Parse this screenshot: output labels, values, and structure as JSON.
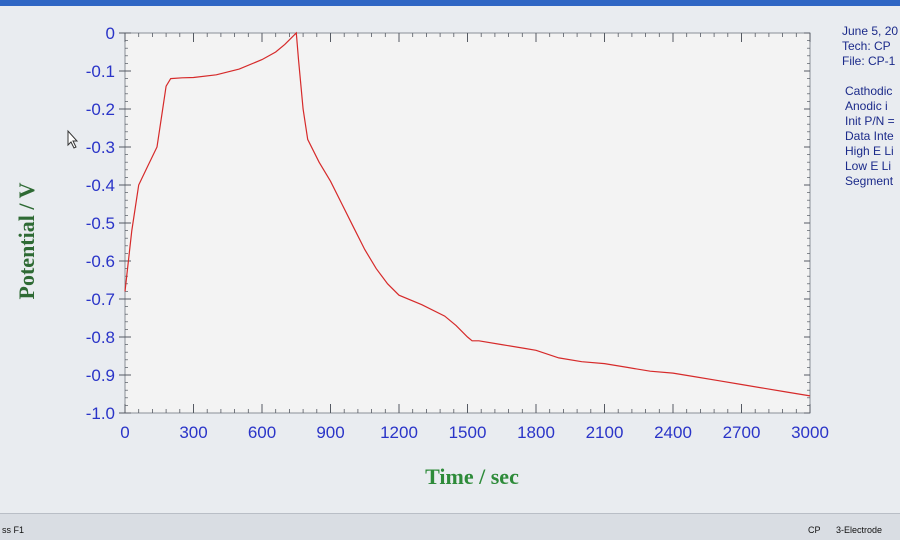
{
  "window": {
    "accent_color": "#2f66c4"
  },
  "chart_data": {
    "type": "line",
    "xlabel": "Time / sec",
    "ylabel": "Potential / V",
    "xlim": [
      0,
      3000
    ],
    "ylim": [
      -1.0,
      0
    ],
    "x_ticks": [
      0,
      300,
      600,
      900,
      1200,
      1500,
      1800,
      2100,
      2400,
      2700,
      3000
    ],
    "y_ticks": [
      0,
      -0.1,
      -0.2,
      -0.3,
      -0.4,
      -0.5,
      -0.6,
      -0.7,
      -0.8,
      -0.9,
      -1.0
    ],
    "y_tick_labels": [
      "0",
      "-0.1",
      "-0.2",
      "-0.3",
      "-0.4",
      "-0.5",
      "-0.6",
      "-0.7",
      "-0.8",
      "-0.9",
      "-1.0"
    ],
    "grid": false,
    "line_color": "#d62a2a",
    "series": [
      {
        "x": [
          0,
          30,
          60,
          100,
          140,
          165,
          180,
          200,
          250,
          300,
          400,
          500,
          600,
          660,
          700,
          750,
          760,
          780,
          800,
          850,
          900,
          950,
          1000,
          1050,
          1100,
          1150,
          1200,
          1300,
          1400,
          1450,
          1500,
          1520,
          1550,
          1650,
          1750,
          1800,
          1900,
          2000,
          2100,
          2200,
          2300,
          2400,
          2500,
          2600,
          2700,
          2800,
          2900,
          3000
        ],
        "y": [
          -0.68,
          -0.52,
          -0.4,
          -0.35,
          -0.3,
          -0.2,
          -0.14,
          -0.12,
          -0.118,
          -0.117,
          -0.11,
          -0.095,
          -0.07,
          -0.05,
          -0.03,
          0,
          -0.07,
          -0.2,
          -0.28,
          -0.34,
          -0.39,
          -0.45,
          -0.51,
          -0.57,
          -0.62,
          -0.66,
          -0.69,
          -0.715,
          -0.745,
          -0.77,
          -0.8,
          -0.81,
          -0.81,
          -0.82,
          -0.83,
          -0.835,
          -0.855,
          -0.865,
          -0.87,
          -0.88,
          -0.89,
          -0.895,
          -0.905,
          -0.915,
          -0.925,
          -0.935,
          -0.945,
          -0.955
        ]
      }
    ]
  },
  "info_panel": {
    "lines": [
      "June 5, 20",
      "Tech: CP",
      "File: CP-1",
      "",
      "Cathodic",
      "Anodic i",
      "Init P/N =",
      "Data Inte",
      "High E Li",
      "Low E Li",
      "Segment"
    ]
  },
  "status_bar": {
    "left_text": "ss F1",
    "technique": "CP",
    "electrode": "3-Electrode"
  }
}
